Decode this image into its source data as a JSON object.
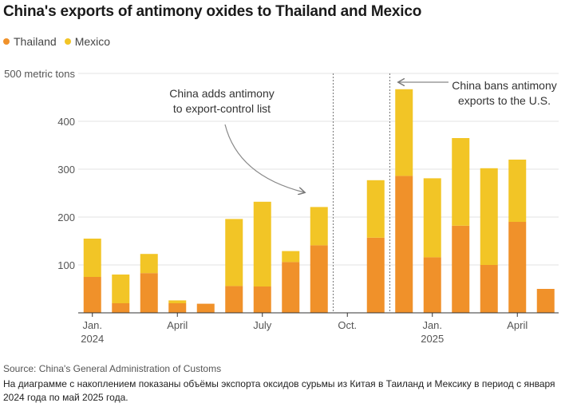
{
  "title": "China's exports of antimony oxides to Thailand and Mexico",
  "legend": [
    {
      "label": "Thailand",
      "color": "#f0912a"
    },
    {
      "label": "Mexico",
      "color": "#f2c526"
    }
  ],
  "chart_data": {
    "type": "bar",
    "stacked": true,
    "title": "China's exports of antimony oxides to Thailand and Mexico",
    "ylabel": "metric tons",
    "ylim": [
      0,
      500
    ],
    "yticks": [
      100,
      200,
      300,
      400,
      500
    ],
    "ytick_labels": [
      "100",
      "200",
      "300",
      "400",
      "500 metric tons"
    ],
    "categories": [
      "Jan 2024",
      "Feb 2024",
      "Mar 2024",
      "Apr 2024",
      "May 2024",
      "Jun 2024",
      "Jul 2024",
      "Aug 2024",
      "Sep 2024",
      "Oct 2024",
      "Nov 2024",
      "Dec 2024",
      "Jan 2025",
      "Feb 2025",
      "Mar 2025",
      "Apr 2025",
      "May 2025"
    ],
    "series": [
      {
        "name": "Thailand",
        "color": "#f0912a",
        "values": [
          75,
          20,
          83,
          20,
          19,
          56,
          55,
          106,
          141,
          0,
          157,
          286,
          116,
          182,
          100,
          190,
          50
        ]
      },
      {
        "name": "Mexico",
        "color": "#f2c526",
        "values": [
          80,
          60,
          40,
          6,
          0,
          140,
          177,
          23,
          80,
          0,
          120,
          181,
          165,
          183,
          202,
          130,
          0
        ]
      }
    ],
    "x_tick_labels": [
      {
        "index": 0,
        "line1": "Jan.",
        "line2": "2024"
      },
      {
        "index": 3,
        "line1": "April",
        "line2": ""
      },
      {
        "index": 6,
        "line1": "July",
        "line2": ""
      },
      {
        "index": 9,
        "line1": "Oct.",
        "line2": ""
      },
      {
        "index": 12,
        "line1": "Jan.",
        "line2": "2025"
      },
      {
        "index": 15,
        "line1": "April",
        "line2": ""
      }
    ],
    "annotations": [
      {
        "id": "export-control",
        "lines": [
          "China adds antimony",
          "to export-control list"
        ]
      },
      {
        "id": "us-ban",
        "lines": [
          "China bans antimony",
          "exports to the U.S."
        ]
      }
    ]
  },
  "source": "Source: China's General Administration of Customs",
  "caption": "На диаграмме с накоплением показаны объёмы экспорта оксидов сурьмы из Китая в Таиланд и Мексику в период с января 2024 года по май 2025 года."
}
